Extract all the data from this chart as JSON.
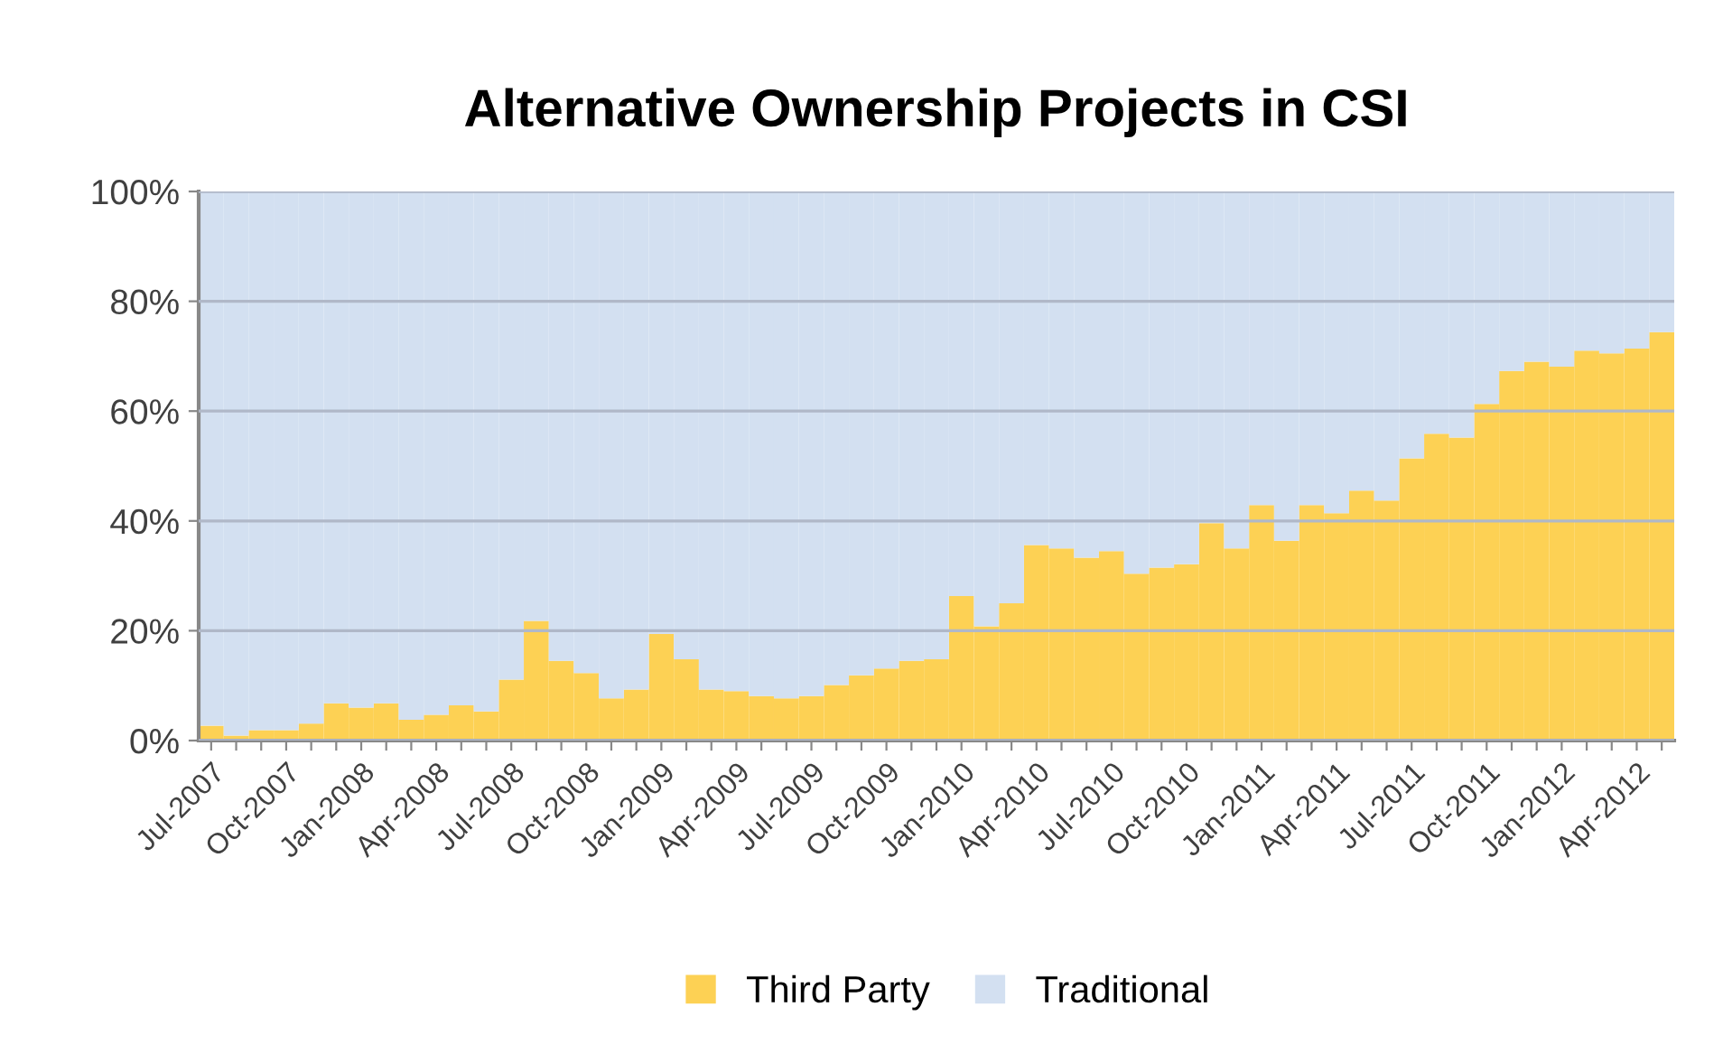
{
  "chart_data": {
    "type": "bar",
    "stacked": true,
    "title": "Alternative Ownership Projects in CSI",
    "categories": [
      "Jul-2007",
      null,
      null,
      "Oct-2007",
      null,
      null,
      "Jan-2008",
      null,
      null,
      "Apr-2008",
      null,
      null,
      "Jul-2008",
      null,
      null,
      "Oct-2008",
      null,
      null,
      "Jan-2009",
      null,
      null,
      "Apr-2009",
      null,
      null,
      "Jul-2009",
      null,
      null,
      "Oct-2009",
      null,
      null,
      "Jan-2010",
      null,
      null,
      "Apr-2010",
      null,
      null,
      "Jul-2010",
      null,
      null,
      "Oct-2010",
      null,
      null,
      "Jan-2011",
      null,
      null,
      "Apr-2011",
      null,
      null,
      "Jul-2011",
      null,
      null,
      "Oct-2011",
      null,
      null,
      "Jan-2012",
      null,
      null,
      "Apr-2012",
      null
    ],
    "series": [
      {
        "name": "Third Party",
        "color": "#fdd154",
        "values": [
          2.7,
          0.9,
          1.9,
          1.9,
          3.1,
          6.8,
          6.0,
          6.8,
          3.8,
          4.7,
          6.4,
          5.3,
          11.1,
          21.8,
          14.5,
          12.3,
          7.7,
          9.3,
          19.4,
          14.8,
          9.3,
          9.0,
          8.1,
          7.7,
          8.1,
          10.1,
          11.9,
          13.1,
          14.5,
          14.8,
          26.3,
          20.8,
          25.0,
          35.6,
          35.0,
          33.3,
          34.5,
          30.4,
          31.5,
          32.1,
          39.6,
          35.0,
          42.9,
          36.4,
          42.9,
          41.4,
          45.5,
          43.7,
          51.4,
          55.9,
          55.2,
          61.3,
          67.3,
          69.0,
          68.1,
          71.0,
          70.5,
          71.4,
          74.4
        ]
      },
      {
        "name": "Traditional",
        "color": "#d3e0f1",
        "values": [
          97.3,
          99.1,
          98.1,
          98.1,
          96.9,
          93.2,
          94.0,
          93.2,
          96.2,
          95.3,
          93.6,
          94.7,
          88.9,
          78.2,
          85.5,
          87.7,
          92.3,
          90.7,
          80.6,
          85.2,
          90.7,
          91.0,
          91.9,
          92.3,
          91.9,
          89.9,
          88.1,
          86.9,
          85.5,
          85.2,
          73.7,
          79.2,
          75.0,
          64.4,
          65.0,
          66.7,
          65.5,
          69.6,
          68.5,
          67.9,
          60.4,
          65.0,
          57.1,
          63.6,
          57.1,
          58.6,
          54.5,
          56.3,
          48.6,
          44.1,
          44.8,
          38.7,
          32.7,
          31.0,
          31.9,
          29.0,
          29.5,
          28.6,
          25.6
        ]
      }
    ],
    "ylim": [
      0,
      100
    ],
    "yticks": [
      {
        "value": 0,
        "label": "0%"
      },
      {
        "value": 20,
        "label": "20%"
      },
      {
        "value": 40,
        "label": "40%"
      },
      {
        "value": 60,
        "label": "60%"
      },
      {
        "value": 80,
        "label": "80%"
      },
      {
        "value": 100,
        "label": "100%"
      }
    ],
    "grid": "y",
    "legend": "bottom"
  }
}
